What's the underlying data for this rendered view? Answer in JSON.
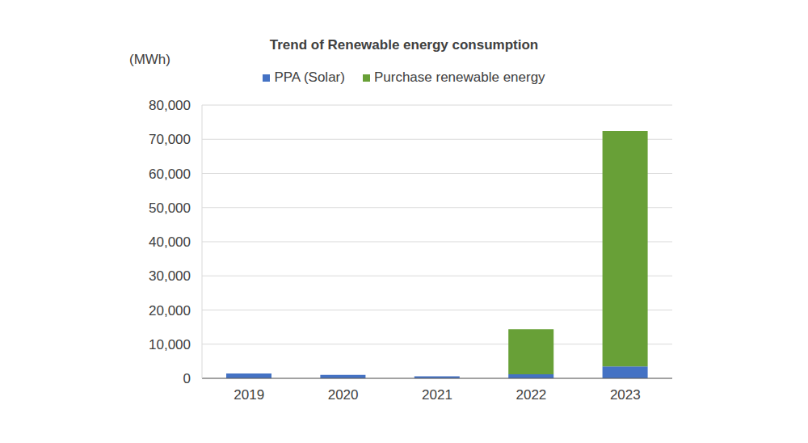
{
  "chart_data": {
    "type": "bar",
    "title": "Trend of Renewable energy consumption",
    "y_label": "(MWh)",
    "categories": [
      "2019",
      "2020",
      "2021",
      "2022",
      "2023"
    ],
    "series": [
      {
        "name": "PPA (Solar)",
        "color": "#4472c4",
        "values": [
          1400,
          1000,
          600,
          1200,
          3500
        ]
      },
      {
        "name": "Purchase renewable energy",
        "color": "#68a037",
        "values": [
          0,
          0,
          0,
          13200,
          68900
        ]
      }
    ],
    "stacked": true,
    "ylim": [
      0,
      80000
    ],
    "yticks": [
      0,
      {
        "value": 10000,
        "label": "10,000"
      },
      {
        "value": 20000,
        "label": "20,000"
      },
      {
        "value": 30000,
        "label": "30,000"
      },
      {
        "value": 40000,
        "label": "40,000"
      },
      {
        "value": 50000,
        "label": "50,000"
      },
      {
        "value": 60000,
        "label": "60,000"
      },
      {
        "value": 70000,
        "label": "70,000"
      },
      {
        "value": 80000,
        "label": "80,000"
      }
    ],
    "grid": true,
    "legend": "top"
  }
}
